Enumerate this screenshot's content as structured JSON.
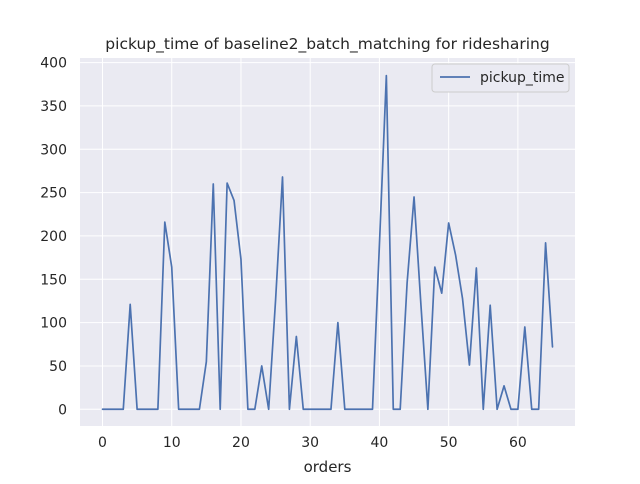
{
  "chart_data": {
    "type": "line",
    "title": "pickup_time of baseline2_batch_matching for ridesharing",
    "xlabel": "orders",
    "ylabel": "",
    "xlim": [
      -3.25,
      68.25
    ],
    "ylim": [
      -19.3,
      405.3
    ],
    "x_ticks": [
      0,
      10,
      20,
      30,
      40,
      50,
      60
    ],
    "y_ticks": [
      0,
      50,
      100,
      150,
      200,
      250,
      300,
      350,
      400
    ],
    "grid": true,
    "legend": "top-right",
    "colors": {
      "background": "#eaeaf2",
      "grid": "#ffffff",
      "line": "#4c72b0",
      "text": "#262626"
    },
    "series": [
      {
        "name": "pickup_time",
        "x": [
          0,
          1,
          2,
          3,
          4,
          5,
          6,
          7,
          8,
          9,
          10,
          11,
          12,
          13,
          14,
          15,
          16,
          17,
          18,
          19,
          20,
          21,
          22,
          23,
          24,
          25,
          26,
          27,
          28,
          29,
          30,
          31,
          32,
          33,
          34,
          35,
          36,
          37,
          38,
          39,
          40,
          41,
          42,
          43,
          44,
          45,
          46,
          47,
          48,
          49,
          50,
          51,
          52,
          53,
          54,
          55,
          56,
          57,
          58,
          59,
          60,
          61,
          62,
          63,
          64,
          65
        ],
        "values": [
          0,
          0,
          0,
          0,
          121,
          0,
          0,
          0,
          0,
          216,
          164,
          0,
          0,
          0,
          0,
          55,
          260,
          0,
          261,
          241,
          173,
          0,
          0,
          50,
          0,
          126,
          268,
          0,
          84,
          0,
          0,
          0,
          0,
          0,
          100,
          0,
          0,
          0,
          0,
          0,
          190,
          385,
          0,
          0,
          146,
          245,
          120,
          0,
          164,
          134,
          215,
          178,
          128,
          51,
          163,
          0,
          120,
          0,
          27,
          0,
          0,
          95,
          0,
          0,
          192,
          72
        ]
      }
    ]
  }
}
